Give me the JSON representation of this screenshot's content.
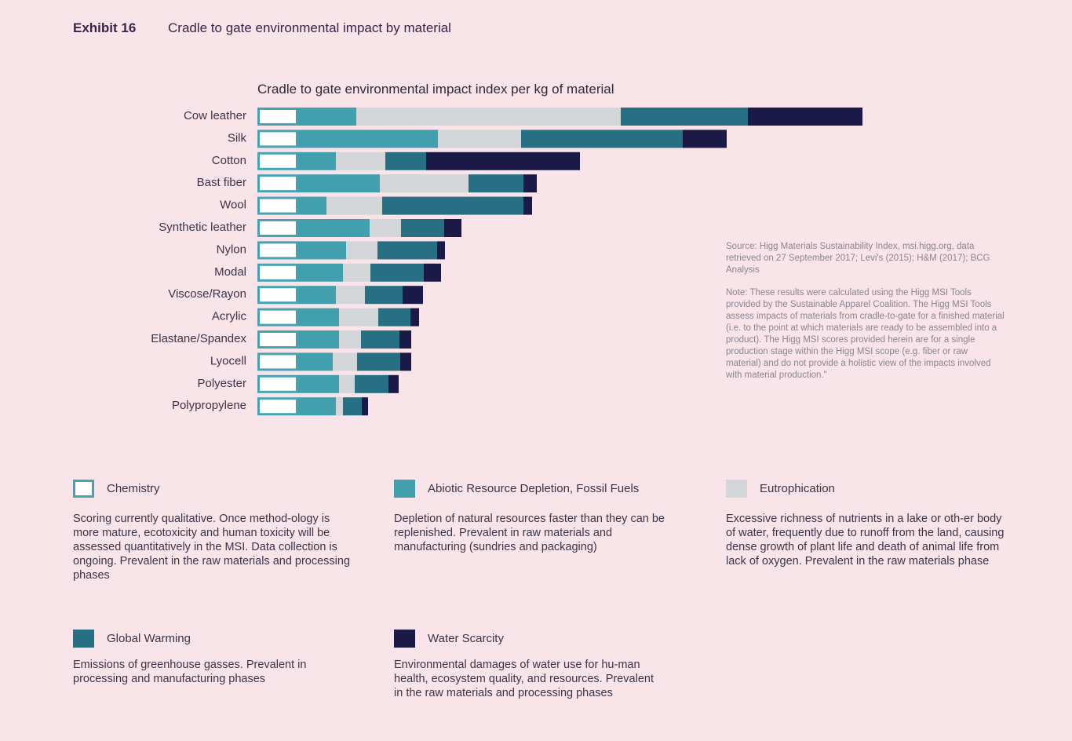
{
  "header": {
    "exhibit_label": "Exhibit 16",
    "exhibit_title": "Cradle to gate environmental impact by material"
  },
  "chart_data": {
    "type": "bar",
    "orientation": "horizontal",
    "stacked": true,
    "title": "Cradle to gate environmental impact index per kg of material",
    "xlabel": "",
    "ylabel": "",
    "categories": [
      "Cow leather",
      "Silk",
      "Cotton",
      "Bast fiber",
      "Wool",
      "Synthetic leather",
      "Nylon",
      "Modal",
      "Viscose/Rayon",
      "Acrylic",
      "Elastane/Spandex",
      "Lyocell",
      "Polyester",
      "Polypropylene"
    ],
    "series": [
      {
        "name": "Chemistry",
        "color": "#ffffff",
        "border": "#46a3b2",
        "values": [
          52,
          52,
          52,
          52,
          52,
          52,
          52,
          52,
          52,
          52,
          52,
          52,
          52,
          52
        ]
      },
      {
        "name": "Abiotic Resource Depletion, Fossil Fuels",
        "color": "#42a0ae",
        "values": [
          74,
          178,
          48,
          104,
          36,
          91,
          61,
          57,
          48,
          52,
          52,
          44,
          52,
          48
        ]
      },
      {
        "name": "Eutrophication",
        "color": "#d3d6d8",
        "values": [
          337,
          106,
          63,
          113,
          71,
          40,
          40,
          35,
          37,
          50,
          28,
          31,
          20,
          9
        ]
      },
      {
        "name": "Global Warming",
        "color": "#276f82",
        "values": [
          162,
          206,
          52,
          70,
          180,
          55,
          76,
          68,
          48,
          41,
          49,
          55,
          43,
          24
        ]
      },
      {
        "name": "Water Scarcity",
        "color": "#1b1a46",
        "values": [
          146,
          56,
          196,
          17,
          11,
          22,
          10,
          22,
          26,
          11,
          15,
          14,
          13,
          8
        ]
      }
    ],
    "grid": false,
    "legend_position": "bottom"
  },
  "notes": {
    "source": "Source: Higg Materials Sustainability Index, msi.higg.org, data retrieved on 27 September 2017; Levi's (2015); H&M (2017); BCG Analysis",
    "note": "Note: These results were calculated using the Higg MSI Tools provided by the Sustainable Apparel Coalition. The Higg MSI Tools assess impacts of materials from cradle-to-gate for a finished material (i.e. to the point at which materials are ready to be assembled into a product). The Higg MSI scores provided herein are for a single production stage within the Higg MSI scope (e.g. fiber or raw material) and do not provide a holistic view of the impacts involved with material production.\""
  },
  "legend": [
    {
      "name": "Chemistry",
      "color": "#ffffff",
      "border": "#46a3b2",
      "description": "Scoring currently qualitative. Once method-ology is more mature, ecotoxicity and human toxicity will be assessed quantitatively in the MSI. Data collection is ongoing. Prevalent in the raw materials and processing phases"
    },
    {
      "name": "Abiotic Resource Depletion, Fossil Fuels",
      "color": "#42a0ae",
      "description": "Depletion of natural resources faster than they can be replenished. Prevalent in raw materials and manufacturing (sundries and packaging)"
    },
    {
      "name": "Eutrophication",
      "color": "#d3d6d8",
      "description": "Excessive richness of nutrients in a lake or oth-er body of water, frequently due to runoff from the land, causing dense growth of plant life and death of animal life from lack of oxygen. Prevalent in the raw materials phase"
    },
    {
      "name": "Global Warming",
      "color": "#276f82",
      "description": "Emissions of greenhouse gasses. Prevalent in processing and manufacturing phases"
    },
    {
      "name": "Water Scarcity",
      "color": "#1b1a46",
      "description": "Environmental damages of water use for hu-man health, ecosystem quality, and resources. Prevalent in the raw materials and processing phases"
    }
  ]
}
